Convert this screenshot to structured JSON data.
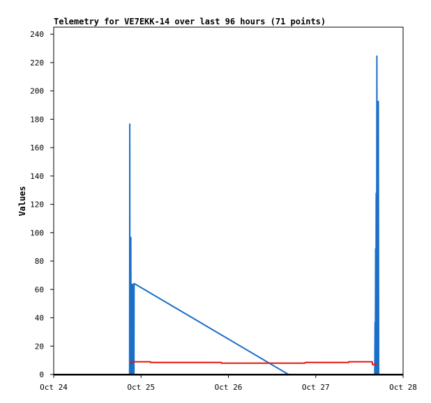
{
  "chart_data": {
    "type": "line",
    "title": "Telemetry for VE7EKK-14 over last 96 hours (71 points)",
    "ylabel": "Values",
    "xlabel": "",
    "x_tick_labels": [
      "Oct 24",
      "Oct 25",
      "Oct 26",
      "Oct 27",
      "Oct 28"
    ],
    "y_tick_labels": [
      "0",
      "20",
      "40",
      "60",
      "80",
      "100",
      "120",
      "140",
      "160",
      "180",
      "200",
      "220",
      "240"
    ],
    "xlim": [
      0,
      96
    ],
    "ylim": [
      0,
      245
    ],
    "x_unit": "hours since Oct 24 00:00",
    "grid": false,
    "series": [
      {
        "color": "#1a6fc9",
        "x": [
          20.85,
          20.9,
          20.95,
          21.0,
          21.05,
          21.1,
          21.15,
          21.2,
          21.25,
          21.3,
          21.35,
          21.4,
          21.45,
          21.5,
          21.55,
          21.6,
          21.65,
          21.7,
          21.75,
          21.8,
          21.85,
          21.9,
          21.95,
          22.0,
          22.05,
          22.1,
          22.2,
          64.5,
          88.2,
          88.3,
          88.35,
          88.45,
          88.5,
          88.6,
          88.7,
          88.8,
          88.9,
          89.0,
          89.1,
          89.2,
          89.3
        ],
        "values": [
          0,
          177,
          0,
          40,
          0,
          48,
          0,
          97,
          0,
          30,
          0,
          64,
          0,
          64,
          0,
          64,
          0,
          64,
          0,
          64,
          0,
          64,
          0,
          64,
          0,
          64,
          64,
          0,
          0,
          37,
          0,
          89,
          0,
          128,
          0,
          225,
          0,
          177,
          0,
          193,
          0
        ]
      },
      {
        "color": "#e8120b",
        "x": [
          21.0,
          21.3,
          21.4,
          26.5,
          26.6,
          46.0,
          46.1,
          69.0,
          69.1,
          81.0,
          81.1,
          87.5,
          87.6,
          88.8
        ],
        "values": [
          8,
          8,
          9,
          9,
          8.5,
          8.5,
          8,
          8,
          8.5,
          8.5,
          9,
          9,
          7,
          7
        ]
      }
    ]
  }
}
